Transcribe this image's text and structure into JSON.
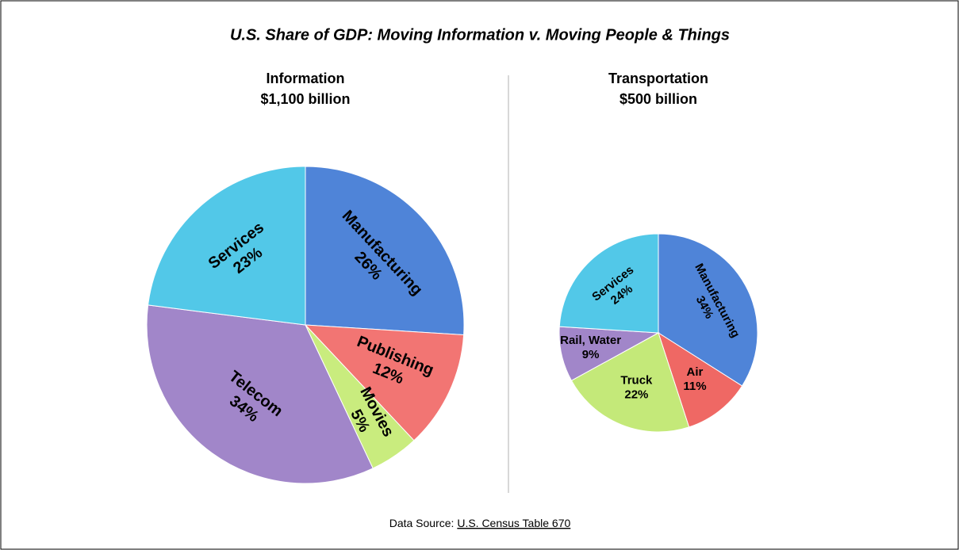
{
  "title": "U.S. Share of GDP: Moving Information v. Moving People & Things",
  "source_label": "Data Source:",
  "source_link": "U.S. Census Table 670",
  "chart_data": [
    {
      "type": "pie",
      "title": "Information",
      "subtitle": "$1,100 billion",
      "categories": [
        "Manufacturing",
        "Publishing",
        "Movies",
        "Telecom",
        "Services"
      ],
      "values": [
        26,
        12,
        5,
        34,
        23
      ],
      "value_labels": [
        "26%",
        "12%",
        "5%",
        "34%",
        "23%"
      ],
      "colors": [
        "#4f84d8",
        "#f27573",
        "#c9ec7e",
        "#a186c9",
        "#52c8e8"
      ]
    },
    {
      "type": "pie",
      "title": "Transportation",
      "subtitle": "$500 billion",
      "categories": [
        "Manufacturing",
        "Air",
        "Truck",
        "Rail, Water",
        "Services"
      ],
      "values": [
        34,
        11,
        22,
        9,
        24
      ],
      "value_labels": [
        "34%",
        "11%",
        "22%",
        "9%",
        "24%"
      ],
      "colors": [
        "#4f84d8",
        "#ef6864",
        "#c4e979",
        "#a186c9",
        "#52c8e8"
      ]
    }
  ]
}
